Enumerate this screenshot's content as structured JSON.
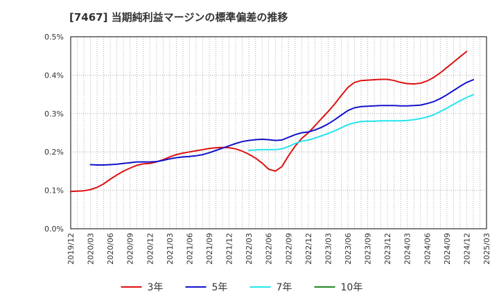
{
  "chart_data": {
    "type": "line",
    "title": "[7467]  当期純利益マージンの標準偏差の推移",
    "xlabel": "",
    "ylabel": "",
    "x_ticks": [
      "2019/12",
      "2020/03",
      "2020/06",
      "2020/09",
      "2020/12",
      "2021/03",
      "2021/06",
      "2021/09",
      "2021/12",
      "2022/03",
      "2022/06",
      "2022/09",
      "2022/12",
      "2023/03",
      "2023/06",
      "2023/09",
      "2023/12",
      "2024/03",
      "2024/06",
      "2024/09",
      "2024/12",
      "2025/03"
    ],
    "y_ticks": [
      "0.0%",
      "0.1%",
      "0.2%",
      "0.3%",
      "0.4%",
      "0.5%"
    ],
    "ylim": [
      0,
      0.5
    ],
    "grid": true,
    "legend_position": "bottom",
    "series": [
      {
        "name": "3年",
        "color": "#dd1111",
        "points": [
          [
            "2019/12",
            0.097
          ],
          [
            "2020/01",
            0.098
          ],
          [
            "2020/02",
            0.099
          ],
          [
            "2020/03",
            0.102
          ],
          [
            "2020/04",
            0.108
          ],
          [
            "2020/05",
            0.117
          ],
          [
            "2020/06",
            0.129
          ],
          [
            "2020/07",
            0.14
          ],
          [
            "2020/08",
            0.15
          ],
          [
            "2020/09",
            0.158
          ],
          [
            "2020/10",
            0.165
          ],
          [
            "2020/11",
            0.169
          ],
          [
            "2020/12",
            0.17
          ],
          [
            "2021/01",
            0.174
          ],
          [
            "2021/02",
            0.18
          ],
          [
            "2021/03",
            0.187
          ],
          [
            "2021/04",
            0.193
          ],
          [
            "2021/05",
            0.197
          ],
          [
            "2021/06",
            0.2
          ],
          [
            "2021/07",
            0.203
          ],
          [
            "2021/08",
            0.206
          ],
          [
            "2021/09",
            0.209
          ],
          [
            "2021/10",
            0.211
          ],
          [
            "2021/11",
            0.212
          ],
          [
            "2021/12",
            0.211
          ],
          [
            "2022/01",
            0.208
          ],
          [
            "2022/02",
            0.202
          ],
          [
            "2022/03",
            0.194
          ],
          [
            "2022/04",
            0.184
          ],
          [
            "2022/05",
            0.171
          ],
          [
            "2022/06",
            0.155
          ],
          [
            "2022/07",
            0.15
          ],
          [
            "2022/08",
            0.162
          ],
          [
            "2022/09",
            0.19
          ],
          [
            "2022/10",
            0.215
          ],
          [
            "2022/11",
            0.235
          ],
          [
            "2022/12",
            0.25
          ],
          [
            "2023/01",
            0.268
          ],
          [
            "2023/02",
            0.287
          ],
          [
            "2023/03",
            0.305
          ],
          [
            "2023/04",
            0.325
          ],
          [
            "2023/05",
            0.347
          ],
          [
            "2023/06",
            0.368
          ],
          [
            "2023/07",
            0.381
          ],
          [
            "2023/08",
            0.386
          ],
          [
            "2023/09",
            0.387
          ],
          [
            "2023/10",
            0.388
          ],
          [
            "2023/11",
            0.389
          ],
          [
            "2023/12",
            0.389
          ],
          [
            "2024/01",
            0.386
          ],
          [
            "2024/02",
            0.381
          ],
          [
            "2024/03",
            0.378
          ],
          [
            "2024/04",
            0.377
          ],
          [
            "2024/05",
            0.379
          ],
          [
            "2024/06",
            0.385
          ],
          [
            "2024/07",
            0.394
          ],
          [
            "2024/08",
            0.406
          ],
          [
            "2024/09",
            0.42
          ],
          [
            "2024/10",
            0.434
          ],
          [
            "2024/11",
            0.448
          ],
          [
            "2024/12",
            0.462
          ]
        ]
      },
      {
        "name": "5年",
        "color": "#1111cc",
        "points": [
          [
            "2020/03",
            0.167
          ],
          [
            "2020/04",
            0.166
          ],
          [
            "2020/05",
            0.166
          ],
          [
            "2020/06",
            0.167
          ],
          [
            "2020/07",
            0.168
          ],
          [
            "2020/08",
            0.17
          ],
          [
            "2020/09",
            0.172
          ],
          [
            "2020/10",
            0.174
          ],
          [
            "2020/11",
            0.174
          ],
          [
            "2020/12",
            0.174
          ],
          [
            "2021/01",
            0.175
          ],
          [
            "2021/02",
            0.178
          ],
          [
            "2021/03",
            0.182
          ],
          [
            "2021/04",
            0.185
          ],
          [
            "2021/05",
            0.187
          ],
          [
            "2021/06",
            0.188
          ],
          [
            "2021/07",
            0.19
          ],
          [
            "2021/08",
            0.193
          ],
          [
            "2021/09",
            0.198
          ],
          [
            "2021/10",
            0.204
          ],
          [
            "2021/11",
            0.21
          ],
          [
            "2021/12",
            0.216
          ],
          [
            "2022/01",
            0.222
          ],
          [
            "2022/02",
            0.227
          ],
          [
            "2022/03",
            0.23
          ],
          [
            "2022/04",
            0.232
          ],
          [
            "2022/05",
            0.233
          ],
          [
            "2022/06",
            0.232
          ],
          [
            "2022/07",
            0.23
          ],
          [
            "2022/08",
            0.231
          ],
          [
            "2022/09",
            0.238
          ],
          [
            "2022/10",
            0.245
          ],
          [
            "2022/11",
            0.25
          ],
          [
            "2022/12",
            0.252
          ],
          [
            "2023/01",
            0.257
          ],
          [
            "2023/02",
            0.264
          ],
          [
            "2023/03",
            0.273
          ],
          [
            "2023/04",
            0.284
          ],
          [
            "2023/05",
            0.296
          ],
          [
            "2023/06",
            0.308
          ],
          [
            "2023/07",
            0.315
          ],
          [
            "2023/08",
            0.318
          ],
          [
            "2023/09",
            0.319
          ],
          [
            "2023/10",
            0.32
          ],
          [
            "2023/11",
            0.321
          ],
          [
            "2023/12",
            0.321
          ],
          [
            "2024/01",
            0.321
          ],
          [
            "2024/02",
            0.32
          ],
          [
            "2024/03",
            0.32
          ],
          [
            "2024/04",
            0.321
          ],
          [
            "2024/05",
            0.322
          ],
          [
            "2024/06",
            0.326
          ],
          [
            "2024/07",
            0.331
          ],
          [
            "2024/08",
            0.339
          ],
          [
            "2024/09",
            0.349
          ],
          [
            "2024/10",
            0.36
          ],
          [
            "2024/11",
            0.371
          ],
          [
            "2024/12",
            0.381
          ],
          [
            "2025/01",
            0.388
          ]
        ]
      },
      {
        "name": "7年",
        "color": "#22e5f0",
        "points": [
          [
            "2022/03",
            0.204
          ],
          [
            "2022/04",
            0.205
          ],
          [
            "2022/05",
            0.206
          ],
          [
            "2022/06",
            0.206
          ],
          [
            "2022/07",
            0.206
          ],
          [
            "2022/08",
            0.208
          ],
          [
            "2022/09",
            0.214
          ],
          [
            "2022/10",
            0.222
          ],
          [
            "2022/11",
            0.228
          ],
          [
            "2022/12",
            0.231
          ],
          [
            "2023/01",
            0.236
          ],
          [
            "2023/02",
            0.242
          ],
          [
            "2023/03",
            0.248
          ],
          [
            "2023/04",
            0.255
          ],
          [
            "2023/05",
            0.263
          ],
          [
            "2023/06",
            0.271
          ],
          [
            "2023/07",
            0.276
          ],
          [
            "2023/08",
            0.279
          ],
          [
            "2023/09",
            0.28
          ],
          [
            "2023/10",
            0.28
          ],
          [
            "2023/11",
            0.281
          ],
          [
            "2023/12",
            0.281
          ],
          [
            "2024/01",
            0.281
          ],
          [
            "2024/02",
            0.281
          ],
          [
            "2024/03",
            0.282
          ],
          [
            "2024/04",
            0.284
          ],
          [
            "2024/05",
            0.287
          ],
          [
            "2024/06",
            0.291
          ],
          [
            "2024/07",
            0.297
          ],
          [
            "2024/08",
            0.305
          ],
          [
            "2024/09",
            0.314
          ],
          [
            "2024/10",
            0.324
          ],
          [
            "2024/11",
            0.333
          ],
          [
            "2024/12",
            0.342
          ],
          [
            "2025/01",
            0.349
          ]
        ]
      },
      {
        "name": "10年",
        "color": "#228822",
        "points": []
      }
    ]
  }
}
